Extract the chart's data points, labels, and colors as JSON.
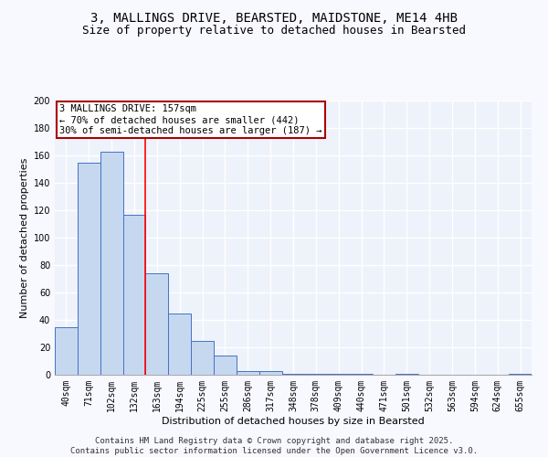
{
  "title_line1": "3, MALLINGS DRIVE, BEARSTED, MAIDSTONE, ME14 4HB",
  "title_line2": "Size of property relative to detached houses in Bearsted",
  "xlabel": "Distribution of detached houses by size in Bearsted",
  "ylabel": "Number of detached properties",
  "categories": [
    "40sqm",
    "71sqm",
    "102sqm",
    "132sqm",
    "163sqm",
    "194sqm",
    "225sqm",
    "255sqm",
    "286sqm",
    "317sqm",
    "348sqm",
    "378sqm",
    "409sqm",
    "440sqm",
    "471sqm",
    "501sqm",
    "532sqm",
    "563sqm",
    "594sqm",
    "624sqm",
    "655sqm"
  ],
  "values": [
    35,
    155,
    163,
    117,
    74,
    45,
    25,
    14,
    3,
    3,
    1,
    1,
    1,
    1,
    0,
    1,
    0,
    0,
    0,
    0,
    1
  ],
  "bar_color": "#c5d8f0",
  "bar_edge_color": "#4472c4",
  "red_line_x": 3.5,
  "annotation_title": "3 MALLINGS DRIVE: 157sqm",
  "annotation_line1": "← 70% of detached houses are smaller (442)",
  "annotation_line2": "30% of semi-detached houses are larger (187) →",
  "annotation_box_color": "#ffffff",
  "annotation_box_edge": "#aa0000",
  "footer_line1": "Contains HM Land Registry data © Crown copyright and database right 2025.",
  "footer_line2": "Contains public sector information licensed under the Open Government Licence v3.0.",
  "ylim": [
    0,
    200
  ],
  "yticks": [
    0,
    20,
    40,
    60,
    80,
    100,
    120,
    140,
    160,
    180,
    200
  ],
  "bg_color": "#eef2fa",
  "grid_color": "#ffffff",
  "title_fontsize": 10,
  "subtitle_fontsize": 9,
  "axis_label_fontsize": 8,
  "tick_fontsize": 7,
  "footer_fontsize": 6.5,
  "annotation_fontsize": 7.5
}
